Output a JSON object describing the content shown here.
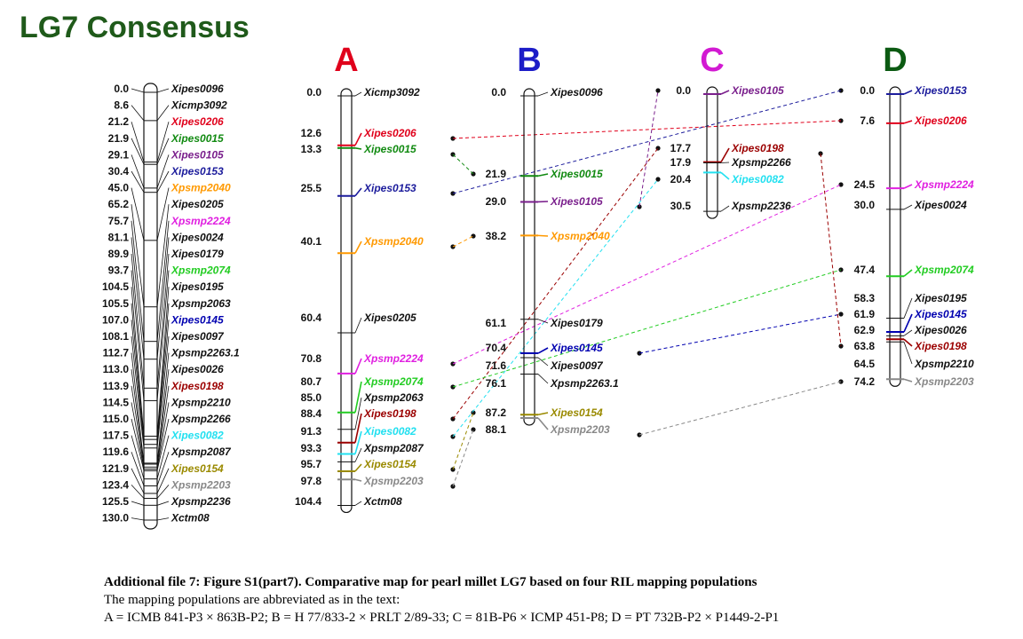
{
  "title": "LG7 Consensus",
  "colors": {
    "black": "#111111",
    "red": "#e0001b",
    "green": "#118a11",
    "purple": "#7a1f8c",
    "blue": "#1c1c9c",
    "orange": "#ff9900",
    "magenta": "#e020e0",
    "lime": "#22cc22",
    "dark_blue": "#0000b0",
    "dark_red": "#9b0000",
    "cyan": "#22e0f0",
    "olive": "#9a8a00",
    "gray": "#888888",
    "title_green": "#1f5a1a"
  },
  "consensus": {
    "markers": [
      {
        "pos": "0.0",
        "name": "Xipes0096",
        "color": "black"
      },
      {
        "pos": "8.6",
        "name": "Xicmp3092",
        "color": "black"
      },
      {
        "pos": "21.2",
        "name": "Xipes0206",
        "color": "red"
      },
      {
        "pos": "21.9",
        "name": "Xipes0015",
        "color": "green"
      },
      {
        "pos": "29.1",
        "name": "Xipes0105",
        "color": "purple"
      },
      {
        "pos": "30.4",
        "name": "Xipes0153",
        "color": "blue"
      },
      {
        "pos": "45.0",
        "name": "Xpsmp2040",
        "color": "orange"
      },
      {
        "pos": "65.2",
        "name": "Xipes0205",
        "color": "black"
      },
      {
        "pos": "75.7",
        "name": "Xpsmp2224",
        "color": "magenta"
      },
      {
        "pos": "81.1",
        "name": "Xipes0024",
        "color": "black"
      },
      {
        "pos": "89.9",
        "name": "Xipes0179",
        "color": "black"
      },
      {
        "pos": "93.7",
        "name": "Xpsmp2074",
        "color": "lime"
      },
      {
        "pos": "104.5",
        "name": "Xipes0195",
        "color": "black"
      },
      {
        "pos": "105.5",
        "name": "Xpsmp2063",
        "color": "black"
      },
      {
        "pos": "107.0",
        "name": "Xipes0145",
        "color": "dark_blue"
      },
      {
        "pos": "108.1",
        "name": "Xipes0097",
        "color": "black"
      },
      {
        "pos": "112.7",
        "name": "Xpsmp2263.1",
        "color": "black"
      },
      {
        "pos": "113.0",
        "name": "Xipes0026",
        "color": "black"
      },
      {
        "pos": "113.9",
        "name": "Xipes0198",
        "color": "dark_red"
      },
      {
        "pos": "114.5",
        "name": "Xpsmp2210",
        "color": "black"
      },
      {
        "pos": "115.0",
        "name": "Xpsmp2266",
        "color": "black"
      },
      {
        "pos": "117.5",
        "name": "Xipes0082",
        "color": "cyan"
      },
      {
        "pos": "119.6",
        "name": "Xpsmp2087",
        "color": "black"
      },
      {
        "pos": "121.9",
        "name": "Xipes0154",
        "color": "olive"
      },
      {
        "pos": "123.4",
        "name": "Xpsmp2203",
        "color": "gray"
      },
      {
        "pos": "125.5",
        "name": "Xpsmp2236",
        "color": "black"
      },
      {
        "pos": "130.0",
        "name": "Xctm08",
        "color": "black"
      }
    ]
  },
  "panels": [
    {
      "letter": "A",
      "letter_color": "#e0001b",
      "markers": [
        {
          "pos": "0.0",
          "name": "Xicmp3092",
          "color": "black"
        },
        {
          "pos": "12.6",
          "name": "Xipes0206",
          "color": "red"
        },
        {
          "pos": "13.3",
          "name": "Xipes0015",
          "color": "green"
        },
        {
          "pos": "25.5",
          "name": "Xipes0153",
          "color": "blue"
        },
        {
          "pos": "40.1",
          "name": "Xpsmp2040",
          "color": "orange"
        },
        {
          "pos": "60.4",
          "name": "Xipes0205",
          "color": "black"
        },
        {
          "pos": "70.8",
          "name": "Xpsmp2224",
          "color": "magenta"
        },
        {
          "pos": "80.7",
          "name": "Xpsmp2074",
          "color": "lime"
        },
        {
          "pos": "85.0",
          "name": "Xpsmp2063",
          "color": "black"
        },
        {
          "pos": "88.4",
          "name": "Xipes0198",
          "color": "dark_red"
        },
        {
          "pos": "91.3",
          "name": "Xipes0082",
          "color": "cyan"
        },
        {
          "pos": "93.3",
          "name": "Xpsmp2087",
          "color": "black"
        },
        {
          "pos": "95.7",
          "name": "Xipes0154",
          "color": "olive"
        },
        {
          "pos": "97.8",
          "name": "Xpsmp2203",
          "color": "gray"
        },
        {
          "pos": "104.4",
          "name": "Xctm08",
          "color": "black"
        }
      ]
    },
    {
      "letter": "B",
      "letter_color": "#1c1cc8",
      "markers": [
        {
          "pos": "0.0",
          "name": "Xipes0096",
          "color": "black"
        },
        {
          "pos": "21.9",
          "name": "Xipes0015",
          "color": "green"
        },
        {
          "pos": "29.0",
          "name": "Xipes0105",
          "color": "purple"
        },
        {
          "pos": "38.2",
          "name": "Xpsmp2040",
          "color": "orange"
        },
        {
          "pos": "61.1",
          "name": "Xipes0179",
          "color": "black"
        },
        {
          "pos": "70.4",
          "name": "Xipes0145",
          "color": "dark_blue"
        },
        {
          "pos": "71.6",
          "name": "Xipes0097",
          "color": "black"
        },
        {
          "pos": "76.1",
          "name": "Xpsmp2263.1",
          "color": "black"
        },
        {
          "pos": "87.2",
          "name": "Xipes0154",
          "color": "olive"
        },
        {
          "pos": "88.1",
          "name": "Xpsmp2203",
          "color": "gray"
        }
      ]
    },
    {
      "letter": "C",
      "letter_color": "#d21ad2",
      "markers": [
        {
          "pos": "0.0",
          "name": "Xipes0105",
          "color": "purple"
        },
        {
          "pos": "17.7",
          "name": "Xipes0198",
          "color": "dark_red"
        },
        {
          "pos": "17.9",
          "name": "Xpsmp2266",
          "color": "black"
        },
        {
          "pos": "20.4",
          "name": "Xipes0082",
          "color": "cyan"
        },
        {
          "pos": "30.5",
          "name": "Xpsmp2236",
          "color": "black"
        }
      ]
    },
    {
      "letter": "D",
      "letter_color": "#0b5a12",
      "markers": [
        {
          "pos": "0.0",
          "name": "Xipes0153",
          "color": "blue"
        },
        {
          "pos": "7.6",
          "name": "Xipes0206",
          "color": "red"
        },
        {
          "pos": "24.5",
          "name": "Xpsmp2224",
          "color": "magenta"
        },
        {
          "pos": "30.0",
          "name": "Xipes0024",
          "color": "black"
        },
        {
          "pos": "47.4",
          "name": "Xpsmp2074",
          "color": "lime"
        },
        {
          "pos": "58.3",
          "name": "Xipes0195",
          "color": "black"
        },
        {
          "pos": "61.9",
          "name": "Xipes0145",
          "color": "dark_blue"
        },
        {
          "pos": "62.9",
          "name": "Xipes0026",
          "color": "black"
        },
        {
          "pos": "63.8",
          "name": "Xipes0198",
          "color": "dark_red"
        },
        {
          "pos": "64.5",
          "name": "Xpsmp2210",
          "color": "black"
        },
        {
          "pos": "74.2",
          "name": "Xpsmp2203",
          "color": "gray"
        }
      ]
    }
  ],
  "caption": {
    "title": "Additional file 7: Figure S1(part7). Comparative map for pearl millet LG7 based on four RIL mapping populations",
    "line2": "The mapping populations are abbreviated as in the text:",
    "line3": "A = ICMB 841-P3 × 863B-P2; B = H 77/833-2 × PRLT 2/89-33; C = 81B-P6 × ICMP 451-P8; D = PT 732B-P2 × P1449-2-P1"
  }
}
